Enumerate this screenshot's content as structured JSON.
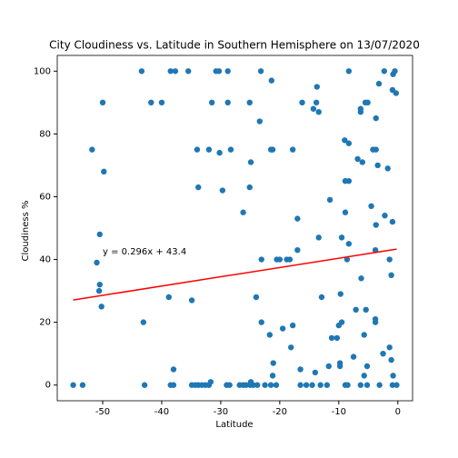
{
  "chart_data": {
    "type": "scatter",
    "title": "City Cloudiness vs. Latitude in Southern Hemisphere on 13/07/2020",
    "x_label": "Latitude",
    "y_label": "Cloudiness %",
    "color": "#1f77b4",
    "x": [
      -55,
      -53.4,
      -51.8,
      -51,
      -50.6,
      -50.5,
      -50.5,
      -50.2,
      -50,
      -49.8,
      -43.4,
      -43.1,
      -42.9,
      -41.8,
      -40,
      -38.8,
      -38.5,
      -37.7,
      -38.5,
      -38,
      -38,
      -35.5,
      -34.9,
      -34.9,
      -34.3,
      -33.8,
      -33.2,
      -32.6,
      -32,
      -31.7,
      -34,
      -33.8,
      -32,
      -31.5,
      -30.8,
      -30.3,
      -30.2,
      -29.7,
      -28.3,
      -28.8,
      -28.8,
      -29,
      -28.5,
      -26.2,
      -26.8,
      -26.2,
      -25.7,
      -25,
      -24.5,
      -23.8,
      -24.9,
      -25.1,
      -24.9,
      -25.1,
      -23.2,
      -23.4,
      -23.1,
      -24,
      -23.1,
      -21.4,
      -21.5,
      -21.2,
      -21.7,
      -21.1,
      -21.2,
      -22.5,
      -21.5,
      -20.6,
      -20.5,
      -20,
      -19.5,
      -18.8,
      -18.3,
      -17.8,
      -17.8,
      -18.1,
      -17,
      -17,
      -16.5,
      -16.5,
      -15.5,
      -14.5,
      -16.2,
      -14.3,
      -13.8,
      -13.7,
      -13.4,
      -13.4,
      -12.9,
      -14,
      -13.1,
      -12,
      -11.5,
      -11.7,
      -11.2,
      -8.3,
      -9,
      -8.3,
      -8.9,
      -8.3,
      -8.9,
      -9.5,
      -8.3,
      -8.6,
      -9.7,
      -9.5,
      -10,
      -10.3,
      -9.8,
      -9.8,
      -7.5,
      -8.9,
      -8.5,
      -6.8,
      -6.3,
      -6.3,
      -6,
      -6.2,
      -7.1,
      -5.4,
      -5.7,
      -5.7,
      -5.2,
      -6.3,
      -5.2,
      -5.5,
      -5.1,
      -4.5,
      -4.2,
      -3.7,
      -3.7,
      -3.4,
      -3.7,
      -3.8,
      -3.8,
      -3.8,
      -3.2,
      -3.1,
      -2.5,
      -2.3,
      -2.2,
      -1.7,
      -1.4,
      -1.4,
      -1.1,
      -1.1,
      -0.9,
      -0.9,
      -0.9,
      -0.8,
      -0.5,
      -0.3,
      -0.8,
      -0.2
    ],
    "values": [
      0,
      0,
      75,
      39,
      30,
      32,
      48,
      25,
      90,
      68,
      100,
      20,
      0,
      90,
      90,
      28,
      100,
      100,
      0,
      0,
      5,
      100,
      27,
      0,
      0,
      0,
      0,
      0,
      0,
      1,
      75,
      63,
      75,
      90,
      100,
      100,
      74,
      62,
      75,
      90,
      100,
      0,
      0,
      55,
      0,
      0,
      0,
      0,
      0,
      0,
      1,
      90,
      71,
      63,
      100,
      84,
      40,
      28,
      20,
      97,
      75,
      75,
      16,
      7,
      3,
      0,
      0,
      0,
      40,
      40,
      18,
      40,
      40,
      75,
      19,
      12,
      53,
      43,
      5,
      0,
      0,
      0,
      90,
      88,
      90,
      95,
      87,
      47,
      28,
      4,
      0,
      0,
      59,
      6,
      15,
      100,
      78,
      77,
      65,
      65,
      55,
      47,
      45,
      40,
      29,
      20,
      19,
      15,
      7,
      6,
      9,
      0,
      0,
      72,
      88,
      87,
      71,
      34,
      24,
      24,
      16,
      3,
      6,
      0,
      0,
      90,
      90,
      57,
      75,
      75,
      85,
      70,
      51,
      43,
      21,
      20,
      96,
      0,
      10,
      100,
      54,
      69,
      40,
      12,
      35,
      8,
      0,
      52,
      94,
      99,
      100,
      93,
      3,
      0
    ],
    "regression": {
      "x": [
        -55,
        -0.2
      ],
      "y": [
        27.1,
        43.3
      ],
      "color": "#ff0000"
    },
    "annotation": {
      "text": "y = 0.296x + 43.4",
      "x": -50,
      "y": 42.5,
      "color": "#ff0000"
    },
    "xlim": [
      -57.7,
      2.5
    ],
    "ylim": [
      -5,
      105
    ],
    "xticks": [
      -50,
      -40,
      -30,
      -20,
      -10,
      0
    ],
    "yticks": [
      0,
      20,
      40,
      60,
      80,
      100
    ]
  }
}
